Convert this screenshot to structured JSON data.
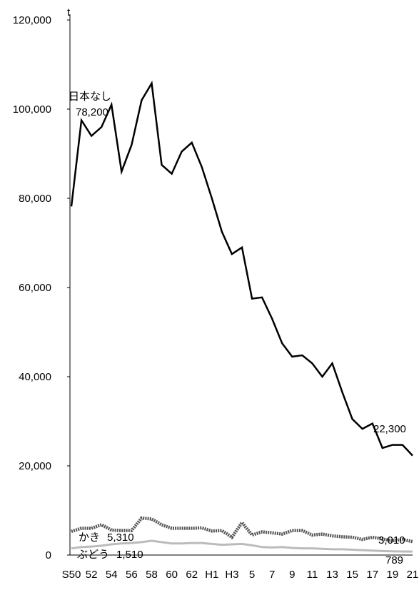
{
  "chart_data": {
    "type": "line",
    "y_unit": "t",
    "ylim": [
      0,
      120000
    ],
    "y_ticks": [
      "0",
      "20,000",
      "40,000",
      "60,000",
      "80,000",
      "100,000",
      "120,000"
    ],
    "y_tick_values": [
      0,
      20000,
      40000,
      60000,
      80000,
      100000,
      120000
    ],
    "grid": false,
    "categories": [
      "S50",
      "51",
      "52",
      "53",
      "54",
      "55",
      "56",
      "57",
      "58",
      "59",
      "60",
      "61",
      "62",
      "63",
      "H1",
      "2",
      "H3",
      "4",
      "5",
      "6",
      "7",
      "8",
      "9",
      "10",
      "11",
      "12",
      "13",
      "14",
      "15",
      "16",
      "17",
      "18",
      "19",
      "20",
      "21"
    ],
    "x_tick_labels": [
      "S50",
      "52",
      "54",
      "56",
      "58",
      "60",
      "62",
      "H1",
      "H3",
      "5",
      "7",
      "9",
      "11",
      "13",
      "15",
      "17",
      "19",
      "21"
    ],
    "x_tick_indices": [
      0,
      2,
      4,
      6,
      8,
      10,
      12,
      14,
      16,
      18,
      20,
      22,
      24,
      26,
      28,
      30,
      32,
      34
    ],
    "series": [
      {
        "name": "日本なし",
        "color": "#000000",
        "style": "solid",
        "values": [
          78200,
          97500,
          94000,
          96000,
          101000,
          86000,
          92000,
          102000,
          105800,
          87500,
          85500,
          90500,
          92500,
          87000,
          80000,
          72500,
          67500,
          69000,
          57500,
          57800,
          53000,
          47500,
          44500,
          44800,
          43000,
          40000,
          43000,
          36500,
          30500,
          28300,
          29500,
          24000,
          24700,
          24700,
          22300
        ],
        "start_label": "78,200",
        "end_label": "22,300"
      },
      {
        "name": "かき",
        "color": "#555555",
        "style": "dotted",
        "values": [
          5310,
          6000,
          6000,
          6800,
          5600,
          5500,
          5500,
          8300,
          8100,
          6800,
          6000,
          6000,
          6000,
          6100,
          5400,
          5500,
          4000,
          7300,
          4500,
          5200,
          5000,
          4700,
          5500,
          5500,
          4500,
          4700,
          4300,
          4100,
          4000,
          3500,
          4000,
          3600,
          3200,
          3500,
          3010
        ],
        "start_label": "5,310",
        "end_label": "3,010"
      },
      {
        "name": "ぶどう",
        "color": "#bbbbbb",
        "style": "solid",
        "values": [
          1510,
          1800,
          1900,
          2100,
          2400,
          2600,
          2700,
          2900,
          3200,
          2900,
          2600,
          2600,
          2700,
          2700,
          2500,
          2300,
          2400,
          2500,
          2200,
          1800,
          1700,
          1800,
          1600,
          1500,
          1500,
          1400,
          1300,
          1300,
          1200,
          1100,
          1000,
          900,
          850,
          800,
          789
        ],
        "start_label": "1,510",
        "end_label": "789"
      }
    ]
  }
}
